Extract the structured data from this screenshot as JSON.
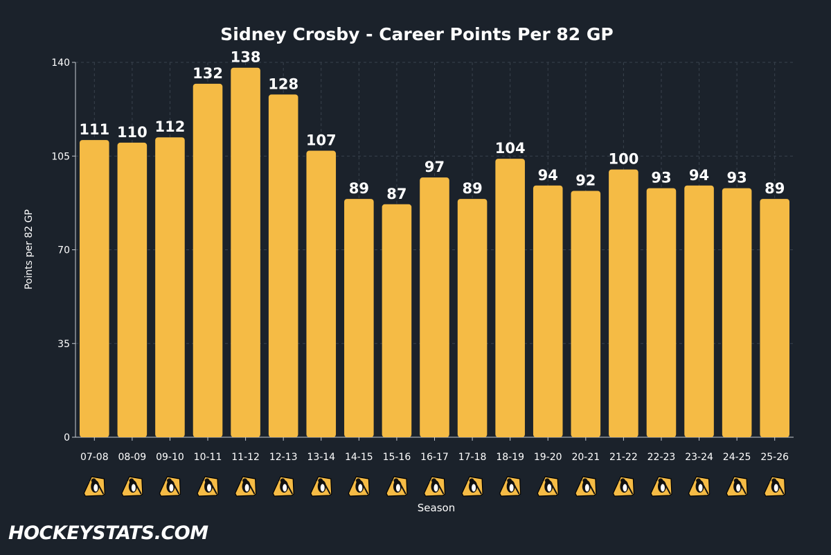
{
  "brand": {
    "logo_text": "HOCKEYSTATS.COM"
  },
  "colors": {
    "background": "#1b222b",
    "bar": "#f5bb45",
    "text": "#ffffff",
    "grid": "#3a434e"
  },
  "team_icon": "pittsburgh-penguins-logo",
  "chart_data": {
    "type": "bar",
    "title": "Sidney Crosby - Career Points Per 82 GP",
    "xlabel": "Season",
    "ylabel": "Points per 82 GP",
    "categories": [
      "07-08",
      "08-09",
      "09-10",
      "10-11",
      "11-12",
      "12-13",
      "13-14",
      "14-15",
      "15-16",
      "16-17",
      "17-18",
      "18-19",
      "19-20",
      "20-21",
      "21-22",
      "22-23",
      "23-24",
      "24-25",
      "25-26"
    ],
    "values": [
      111,
      110,
      112,
      132,
      138,
      128,
      107,
      89,
      87,
      97,
      89,
      104,
      94,
      92,
      100,
      93,
      94,
      93,
      89
    ],
    "data_labels": [
      "111",
      "110",
      "112",
      "132",
      "138",
      "128",
      "107",
      "89",
      "87",
      "97",
      "89",
      "104",
      "94",
      "92",
      "100",
      "93",
      "94",
      "93",
      "89"
    ],
    "ylim": [
      0,
      140
    ],
    "yticks": [
      0,
      35,
      70,
      105,
      140
    ],
    "ytick_labels": [
      "0",
      "35",
      "70",
      "105",
      "140"
    ],
    "grid": true,
    "legend": "none"
  }
}
